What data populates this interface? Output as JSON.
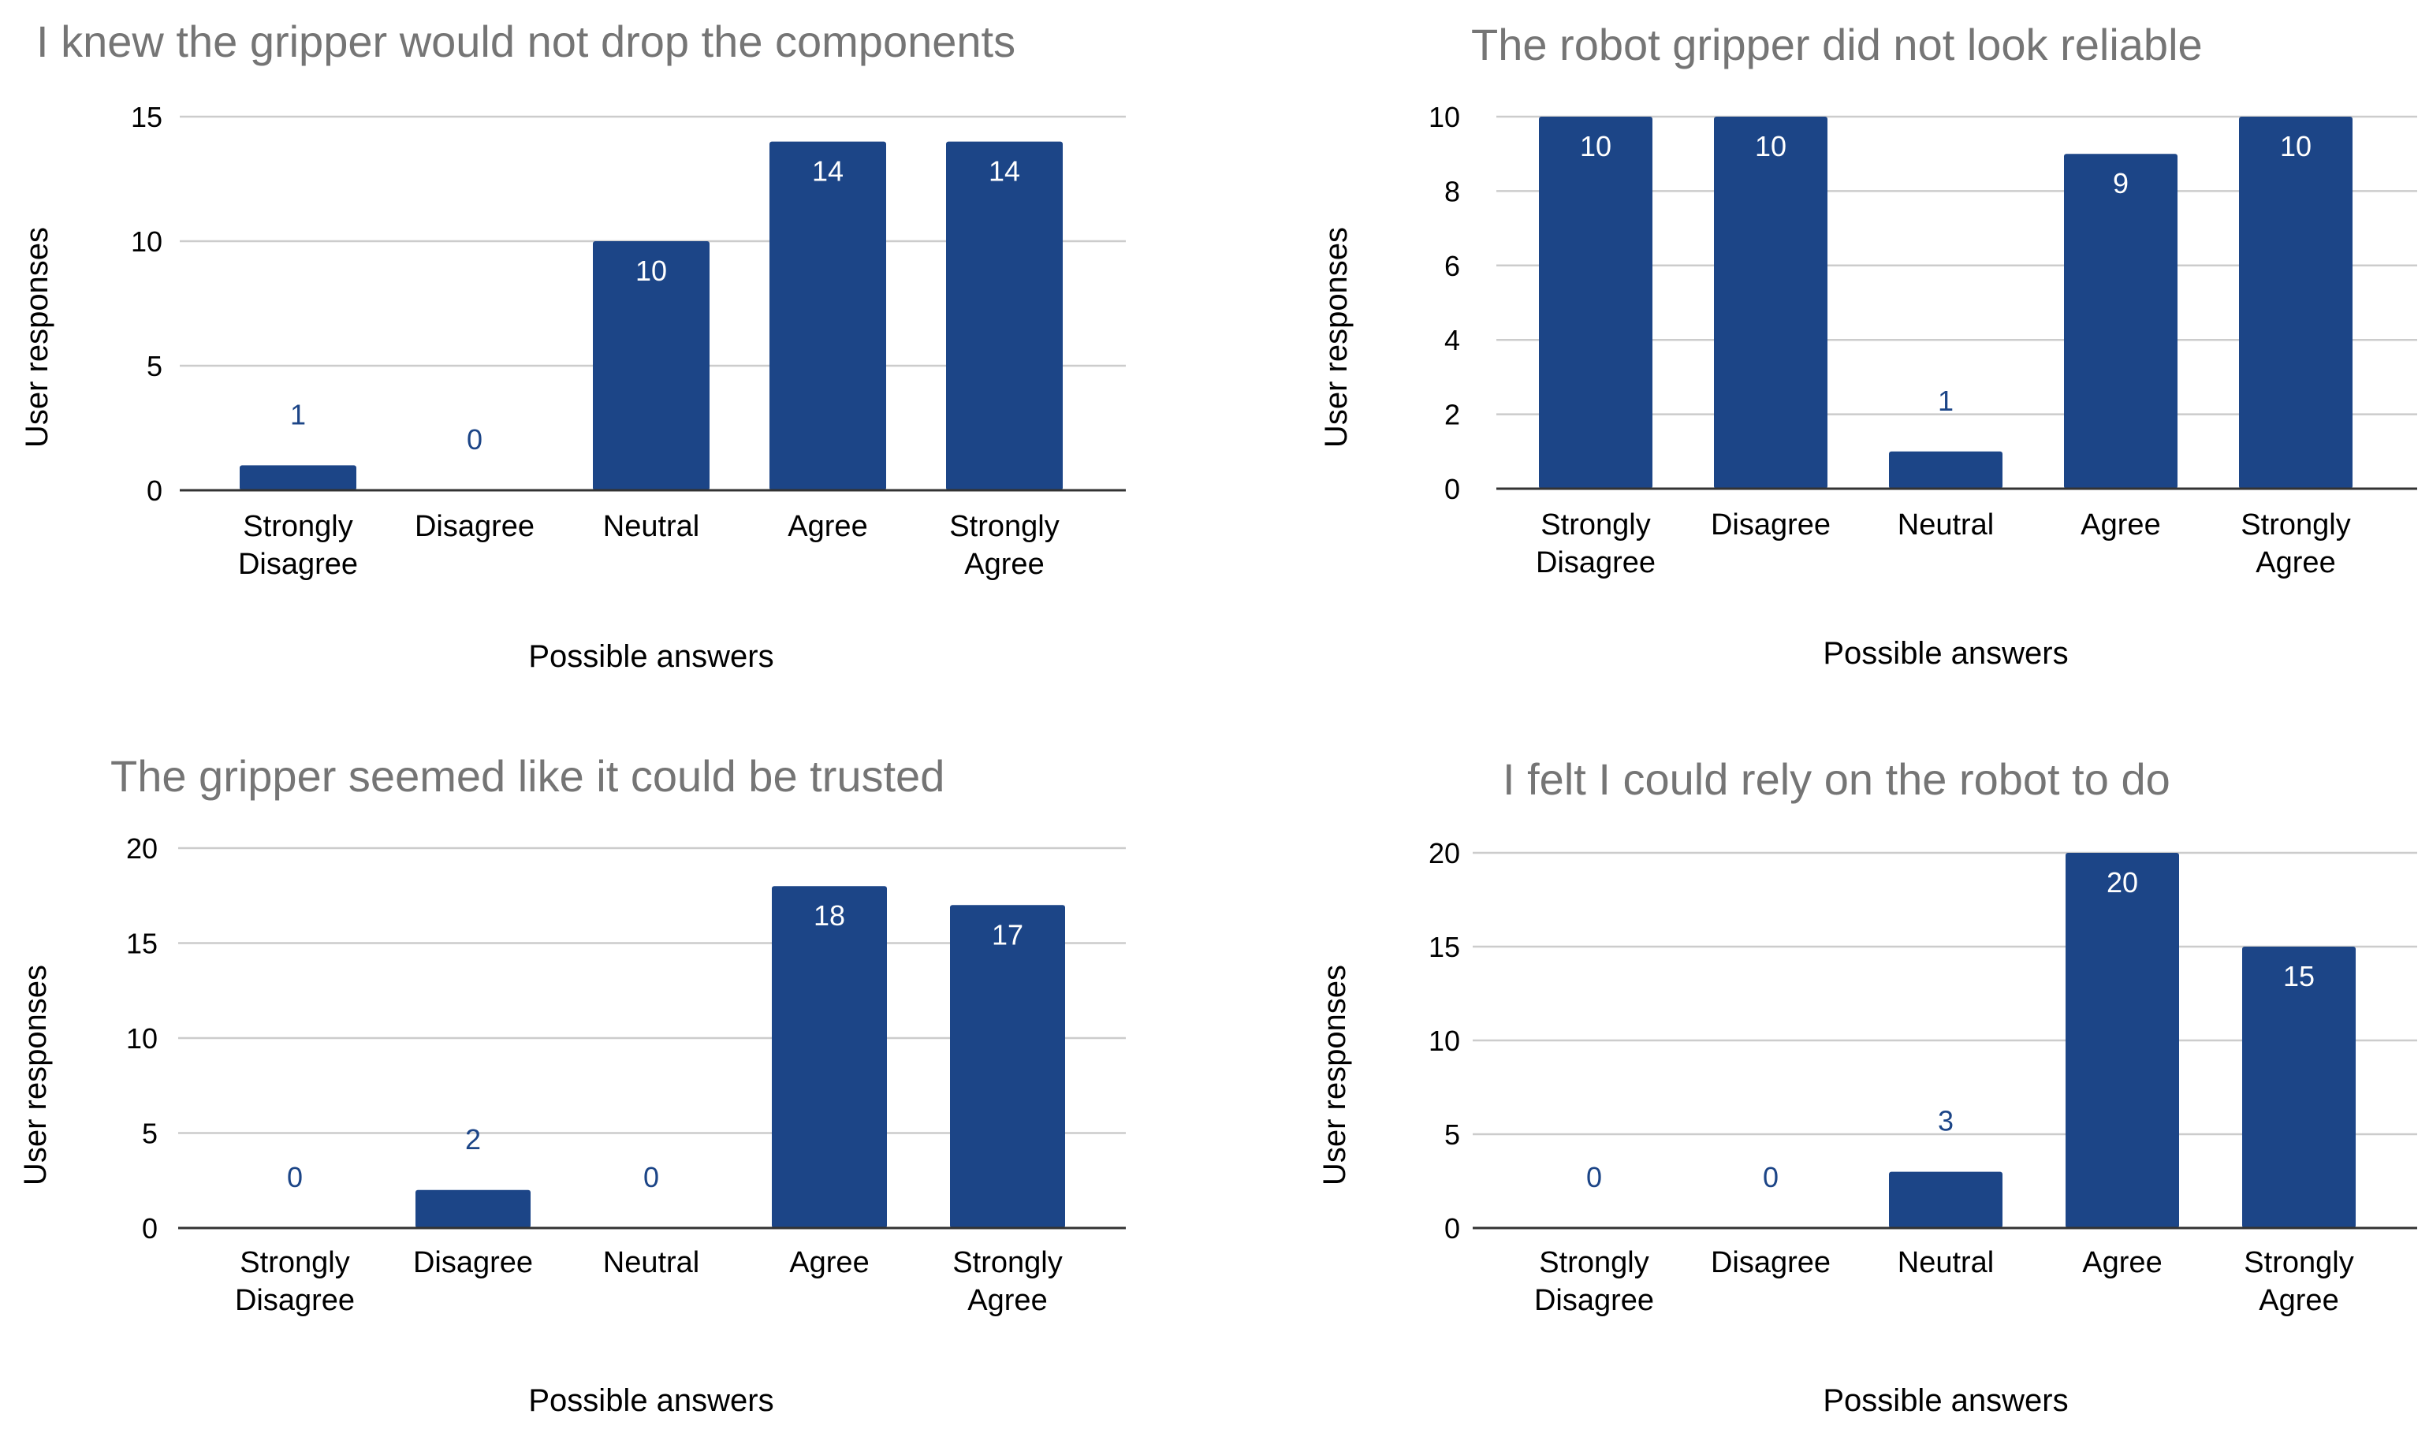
{
  "colors": {
    "bar": "#1c4587",
    "title": "#757575",
    "grid": "#cccccc"
  },
  "chart_data": [
    {
      "type": "bar",
      "title": "I knew the gripper would not drop the components",
      "xlabel": "Possible answers",
      "ylabel": "User responses",
      "categories": [
        [
          "Strongly",
          "Disagree"
        ],
        [
          "Disagree"
        ],
        [
          "Neutral"
        ],
        [
          "Agree"
        ],
        [
          "Strongly",
          "Agree"
        ]
      ],
      "values": [
        1,
        0,
        10,
        14,
        14
      ],
      "ylim": [
        0,
        15
      ],
      "yticks": [
        0,
        5,
        10,
        15
      ]
    },
    {
      "type": "bar",
      "title": "The robot gripper did not look reliable",
      "xlabel": "Possible answers",
      "ylabel": "User responses",
      "categories": [
        [
          "Strongly",
          "Disagree"
        ],
        [
          "Disagree"
        ],
        [
          "Neutral"
        ],
        [
          "Agree"
        ],
        [
          "Strongly",
          "Agree"
        ]
      ],
      "values": [
        10,
        10,
        1,
        9,
        10
      ],
      "ylim": [
        0,
        10
      ],
      "yticks": [
        0,
        2,
        4,
        6,
        8,
        10
      ]
    },
    {
      "type": "bar",
      "title": "The gripper seemed like it could be trusted",
      "xlabel": "Possible answers",
      "ylabel": "User responses",
      "categories": [
        [
          "Strongly",
          "Disagree"
        ],
        [
          "Disagree"
        ],
        [
          "Neutral"
        ],
        [
          "Agree"
        ],
        [
          "Strongly",
          "Agree"
        ]
      ],
      "values": [
        0,
        2,
        0,
        18,
        17
      ],
      "ylim": [
        0,
        20
      ],
      "yticks": [
        0,
        5,
        10,
        15,
        20
      ]
    },
    {
      "type": "bar",
      "title": "I felt I could rely on the robot to do",
      "xlabel": "Possible answers",
      "ylabel": "User responses",
      "categories": [
        [
          "Strongly",
          "Disagree"
        ],
        [
          "Disagree"
        ],
        [
          "Neutral"
        ],
        [
          "Agree"
        ],
        [
          "Strongly",
          "Agree"
        ]
      ],
      "values": [
        0,
        0,
        3,
        20,
        15
      ],
      "ylim": [
        0,
        20
      ],
      "yticks": [
        0,
        5,
        10,
        15,
        20
      ]
    }
  ]
}
